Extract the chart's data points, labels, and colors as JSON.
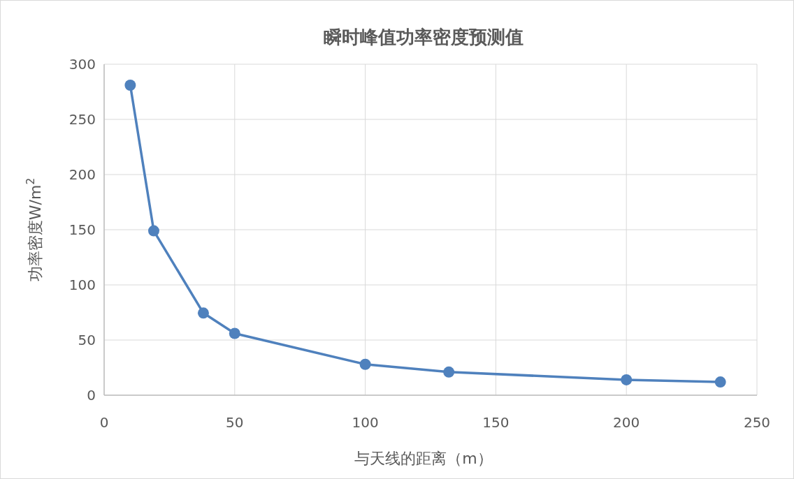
{
  "chart_data": {
    "type": "line",
    "title": "瞬时峰值功率密度预测值",
    "xlabel": "与天线的距离（m）",
    "ylabel": "功率密度W/m$^{2}$",
    "x": [
      10,
      19,
      38,
      50,
      100,
      132,
      200,
      236
    ],
    "series": [
      {
        "color": "#4f81bd",
        "values": [
          281,
          149,
          74.5,
          56,
          28,
          21,
          14,
          12
        ]
      }
    ],
    "xlim": [
      0,
      250
    ],
    "xticks": [
      0,
      50,
      100,
      150,
      200,
      250
    ],
    "ylim": [
      0,
      300
    ],
    "yticks": [
      0,
      50,
      100,
      150,
      200,
      250,
      300
    ],
    "grid": true,
    "marker": "circle",
    "line_style": "solid"
  }
}
